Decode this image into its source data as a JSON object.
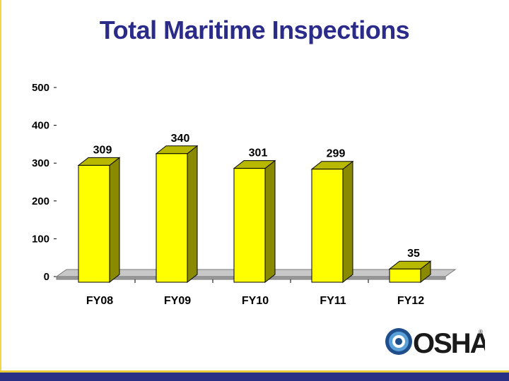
{
  "slide": {
    "title": "Total Maritime Inspections",
    "colors": {
      "title": "#2b2b8a",
      "bar_front": "#ffff00",
      "bar_side": "#8a8a00",
      "bar_top": "#b8b800",
      "floor": "#9a9a9a",
      "bottom_bar": "#2a2f86",
      "stripe": "#e8c93a"
    }
  },
  "chart_data": {
    "type": "bar",
    "title": "",
    "xlabel": "",
    "ylabel": "",
    "categories": [
      "FY08",
      "FY09",
      "FY10",
      "FY11",
      "FY12"
    ],
    "values": [
      309,
      340,
      301,
      299,
      35
    ],
    "data_labels": [
      "309",
      "340",
      "301",
      "299",
      "35"
    ],
    "ylim": [
      0,
      500
    ],
    "yticks": [
      "0",
      "100",
      "200",
      "300",
      "400",
      "500"
    ],
    "style": "3d-column",
    "grid": false,
    "legend": "none"
  },
  "logo": {
    "text": "OSHA",
    "mark": "®",
    "icon": "osha-swirl-icon"
  }
}
